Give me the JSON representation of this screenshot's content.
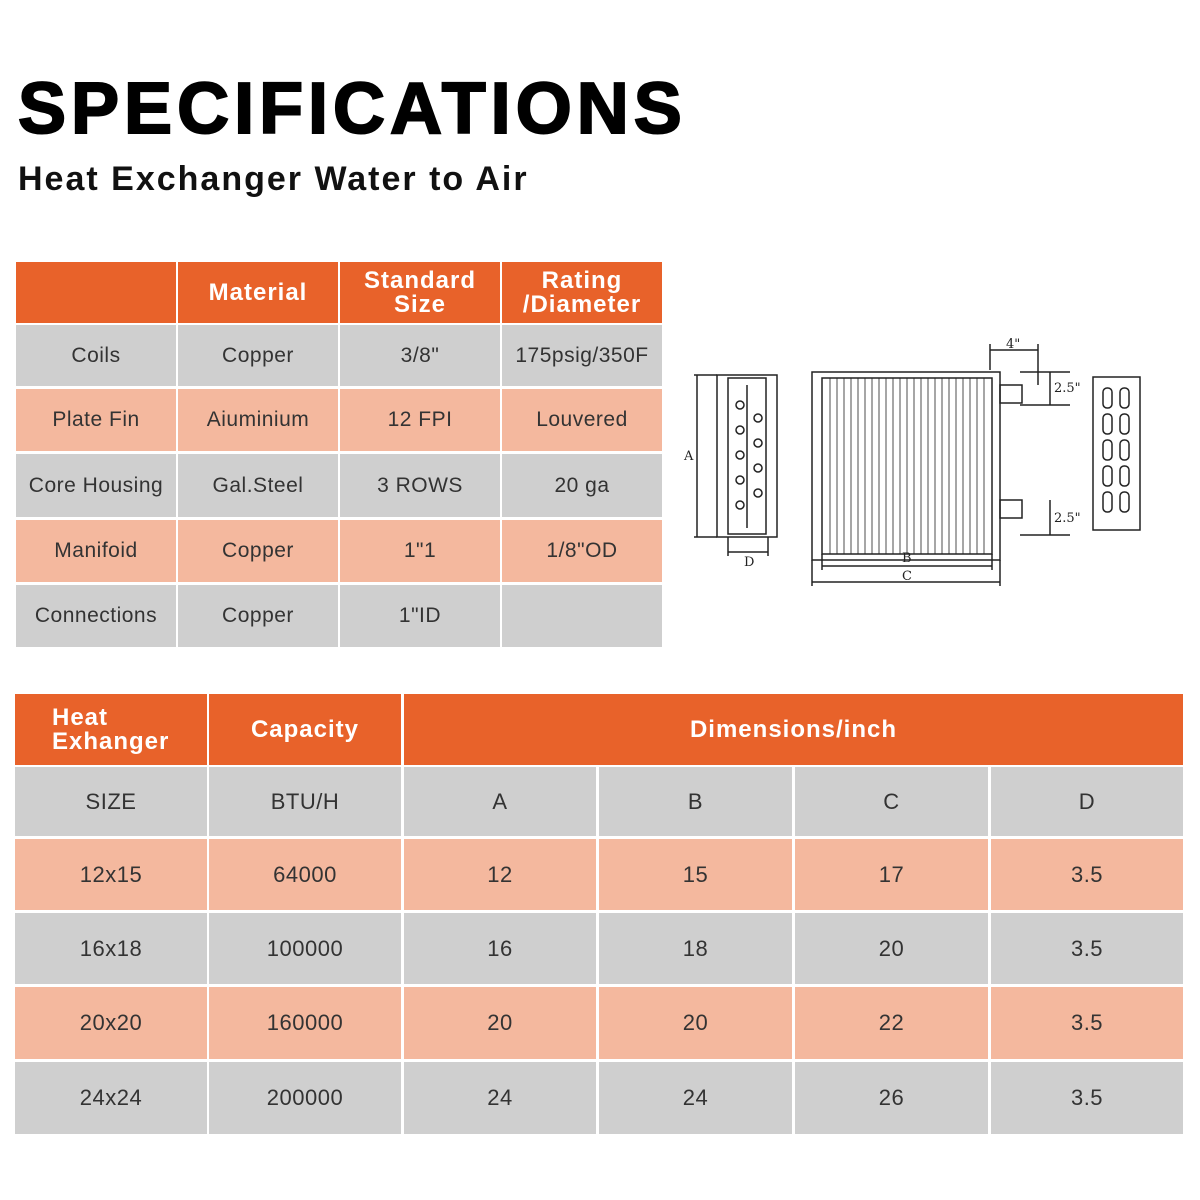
{
  "header": {
    "title": "SPECIFICATIONS",
    "subtitle": "Heat Exchanger Water to Air"
  },
  "spec_table": {
    "columns": [
      "",
      "Material",
      "Standard Size",
      "Rating /Diameter"
    ],
    "rows": [
      [
        "Coils",
        "Copper",
        "3/8\"",
        "175psig/350F"
      ],
      [
        "Plate Fin",
        "Aiuminium",
        "12 FPI",
        "Louvered"
      ],
      [
        "Core Housing",
        "Gal.Steel",
        "3 ROWS",
        "20 ga"
      ],
      [
        "Manifoid",
        "Copper",
        "1\"1",
        "1/8\"OD"
      ],
      [
        "Connections",
        "Copper",
        "1\"ID",
        ""
      ]
    ]
  },
  "size_table": {
    "columns": [
      "Heat Exhanger",
      "Capacity",
      "Dimensions/inch"
    ],
    "rows": [
      [
        "SIZE",
        "BTU/H",
        "A",
        "B",
        "C",
        "D"
      ],
      [
        "12x15",
        "64000",
        "12",
        "15",
        "17",
        "3.5"
      ],
      [
        "16x18",
        "100000",
        "16",
        "18",
        "20",
        "3.5"
      ],
      [
        "20x20",
        "160000",
        "20",
        "20",
        "22",
        "3.5"
      ],
      [
        "24x24",
        "200000",
        "24",
        "24",
        "26",
        "3.5"
      ]
    ]
  },
  "diagram": {
    "labels": [
      "4\"",
      "2.5\"",
      "2.5\"",
      "A",
      "B",
      "C",
      "D"
    ]
  }
}
